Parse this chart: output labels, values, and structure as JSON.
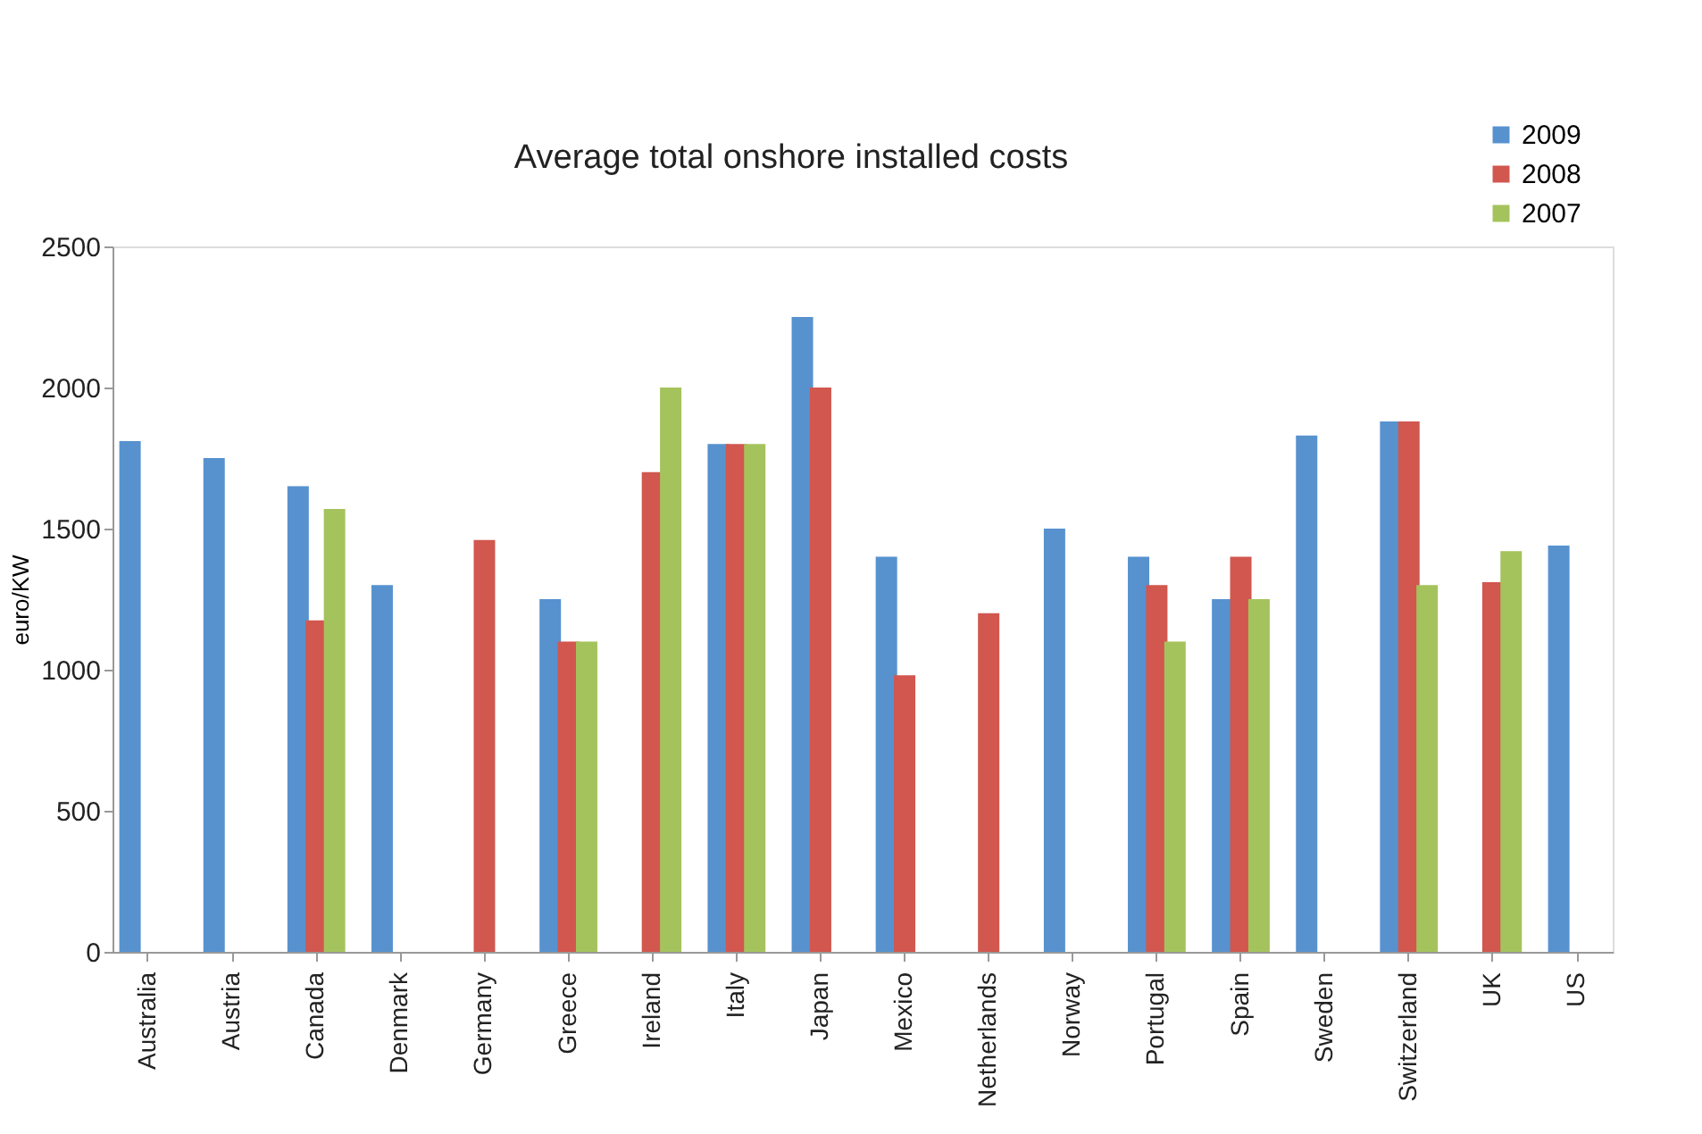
{
  "chart_data": {
    "type": "bar",
    "title": "Average total onshore installed costs",
    "ylabel": "euro/KW",
    "categories": [
      "Australia",
      "Austria",
      "Canada",
      "Denmark",
      "Germany",
      "Greece",
      "Ireland",
      "Italy",
      "Japan",
      "Mexico",
      "Netherlands",
      "Norway",
      "Portugal",
      "Spain",
      "Sweden",
      "Switzerland",
      "UK",
      "US"
    ],
    "series": [
      {
        "name": "2009",
        "color": "#5792cf",
        "values": [
          1810,
          1750,
          1650,
          1300,
          null,
          1250,
          null,
          1800,
          2250,
          1400,
          null,
          1500,
          1400,
          1250,
          1830,
          1880,
          null,
          1440
        ]
      },
      {
        "name": "2008",
        "color": "#d1574f",
        "values": [
          null,
          null,
          1175,
          null,
          1460,
          1100,
          1700,
          1800,
          2000,
          980,
          1200,
          null,
          1300,
          1400,
          null,
          1880,
          1310,
          null
        ]
      },
      {
        "name": "2007",
        "color": "#a5c35c",
        "values": [
          null,
          null,
          1570,
          null,
          null,
          1100,
          2000,
          1800,
          null,
          null,
          null,
          null,
          1100,
          1250,
          null,
          1300,
          1420,
          null
        ]
      }
    ],
    "ylim": [
      0,
      2500
    ],
    "yticks": [
      0,
      500,
      1000,
      1500,
      2000,
      2500
    ],
    "grid": false,
    "legend": "top right"
  }
}
